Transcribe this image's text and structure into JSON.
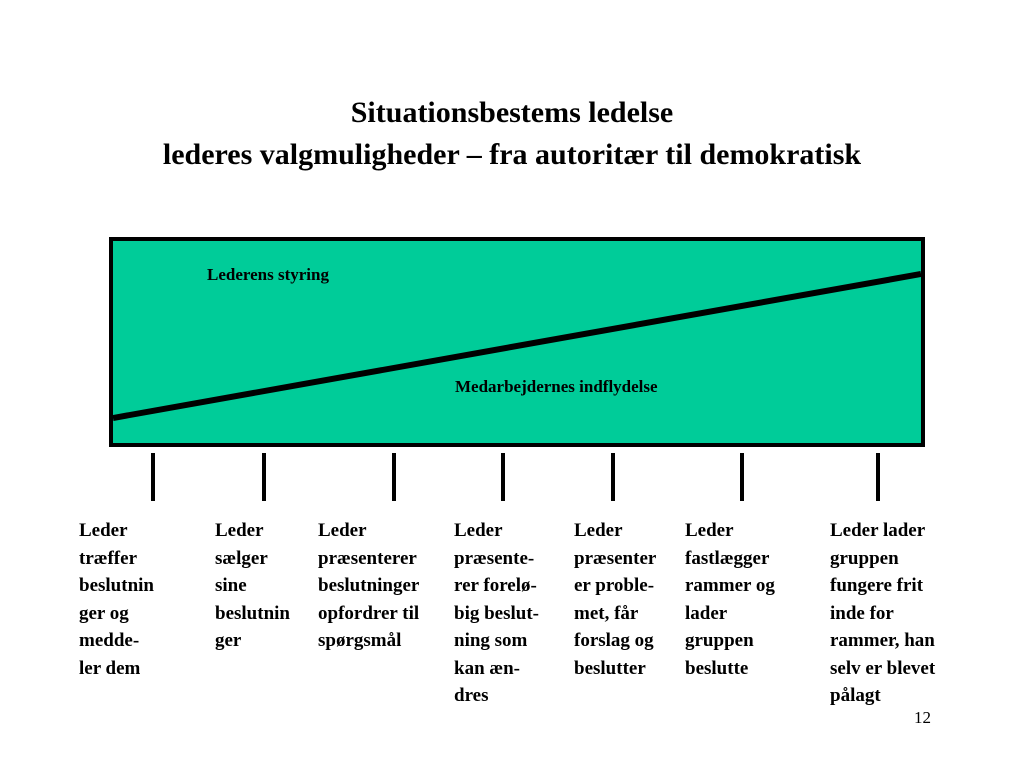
{
  "slide": {
    "title_line1": "Situationsbestems ledelse",
    "title_line2": "lederes valgmuligheder – fra autoritær til demokratisk",
    "page_number": "12"
  },
  "diagram": {
    "fill_color": "#00cc99",
    "border_color": "#000000",
    "upper_area_label": "Lederens styring",
    "lower_area_label": "Medarbejdernes indflydelse"
  },
  "columns": [
    {
      "text": "Leder\ntræffer\nbeslutnin\nger og\nmedde-\nler dem"
    },
    {
      "text": "Leder\nsælger\nsine\nbeslutnin\nger"
    },
    {
      "text": "Leder\npræsenterer\nbeslutninger\nopfordrer til\nspørgsmål"
    },
    {
      "text": "Leder\npræsente-\nrer forelø-\nbig beslut-\nning som\nkan æn-\ndres"
    },
    {
      "text": "Leder\npræsenter\ner proble-\nmet, får\nforslag og\nbeslutter"
    },
    {
      "text": "Leder\nfastlægger\nrammer og\nlader\ngruppen\nbeslutte"
    },
    {
      "text": "Leder lader\ngruppen\nfungere frit\ninde for\nrammer, han\nselv er blevet\npålagt"
    }
  ]
}
